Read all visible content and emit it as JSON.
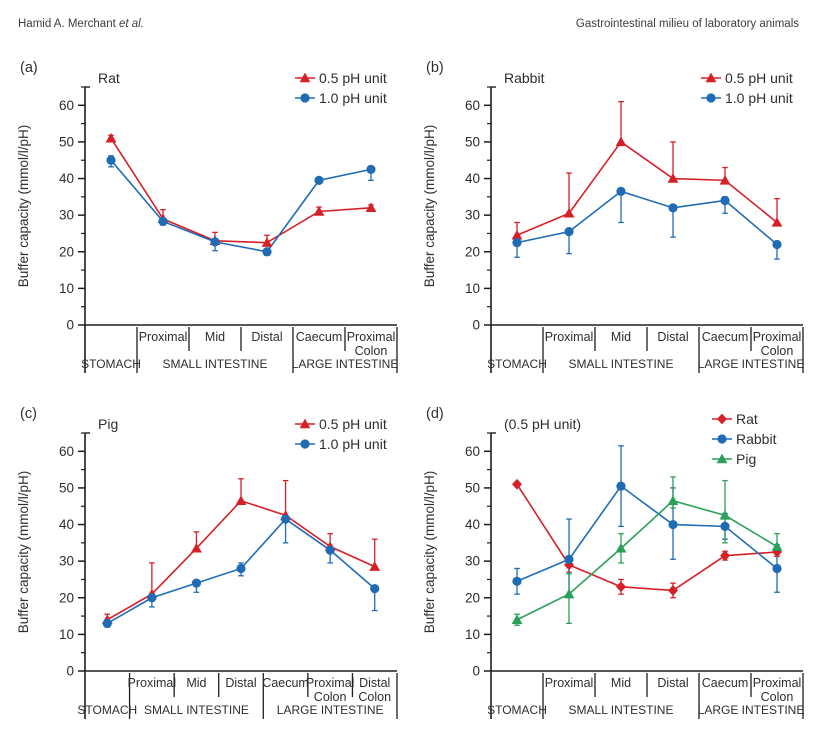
{
  "header": {
    "author_main": "Hamid A. Merchant",
    "author_etal": "et al.",
    "right_title": "Gastrointestinal milieu of laboratory animals"
  },
  "colors": {
    "red": "#d62027",
    "blue": "#1f6cb5",
    "green": "#2aa158",
    "axis": "#1d1d1b",
    "text": "#2e2e2e"
  },
  "ylabel": "Buffer capacity (mmol/l/pH)",
  "chart_data": [
    {
      "type": "line",
      "panel_label": "(a)",
      "title": "Rat",
      "ylabel": "Buffer capacity (mmol/l/pH)",
      "ylim": [
        0,
        65
      ],
      "yticks": [
        0,
        10,
        20,
        30,
        40,
        50,
        60
      ],
      "minor_tick_step": 5,
      "grid": false,
      "legend_position": "top-right",
      "categories": [
        "Stomach",
        "Proximal SI",
        "Mid SI",
        "Distal SI",
        "Caecum",
        "Proximal Colon"
      ],
      "sublabels": [
        [
          ""
        ],
        [
          "Proximal"
        ],
        [
          "Mid"
        ],
        [
          "Distal"
        ],
        [
          "Caecum"
        ],
        [
          "Proximal",
          "Colon"
        ]
      ],
      "groups": [
        {
          "label": "STOMACH",
          "from": 0,
          "to": 0
        },
        {
          "label": "SMALL INTESTINE",
          "from": 1,
          "to": 3
        },
        {
          "label": "LARGE INTESTINE",
          "from": 4,
          "to": 5
        }
      ],
      "legend": [
        {
          "name": "0.5 pH unit",
          "color": "red",
          "marker": "triangle"
        },
        {
          "name": "1.0 pH unit",
          "color": "blue",
          "marker": "circle"
        }
      ],
      "series": [
        {
          "name": "0.5 pH unit",
          "color": "red",
          "marker": "triangle",
          "values": [
            51,
            29,
            23,
            22.5,
            31,
            32
          ],
          "err_up": [
            0.8,
            2.5,
            2.3,
            2,
            1.2,
            0.8
          ],
          "err_down": [
            0.8,
            0,
            0,
            0,
            0,
            0
          ]
        },
        {
          "name": "1.0 pH unit",
          "color": "blue",
          "marker": "circle",
          "values": [
            45,
            28.3,
            22.7,
            20,
            39.5,
            42.5
          ],
          "err_up": [
            1.2,
            0.8,
            0,
            0,
            0,
            0
          ],
          "err_down": [
            1.8,
            1,
            2.4,
            1,
            0,
            3
          ]
        }
      ]
    },
    {
      "type": "line",
      "panel_label": "(b)",
      "title": "Rabbit",
      "ylabel": "Buffer capacity (mmol/l/pH)",
      "ylim": [
        0,
        65
      ],
      "yticks": [
        0,
        10,
        20,
        30,
        40,
        50,
        60
      ],
      "minor_tick_step": 5,
      "grid": false,
      "legend_position": "top-right",
      "categories": [
        "Stomach",
        "Proximal SI",
        "Mid SI",
        "Distal SI",
        "Caecum",
        "Proximal Colon"
      ],
      "sublabels": [
        [
          ""
        ],
        [
          "Proximal"
        ],
        [
          "Mid"
        ],
        [
          "Distal"
        ],
        [
          "Caecum"
        ],
        [
          "Proximal",
          "Colon"
        ]
      ],
      "groups": [
        {
          "label": "STOMACH",
          "from": 0,
          "to": 0
        },
        {
          "label": "SMALL INTESTINE",
          "from": 1,
          "to": 3
        },
        {
          "label": "LARGE INTESTINE",
          "from": 4,
          "to": 5
        }
      ],
      "legend": [
        {
          "name": "0.5 pH unit",
          "color": "red",
          "marker": "triangle"
        },
        {
          "name": "1.0 pH unit",
          "color": "blue",
          "marker": "circle"
        }
      ],
      "series": [
        {
          "name": "0.5 pH unit",
          "color": "red",
          "marker": "triangle",
          "values": [
            24.5,
            30.5,
            50,
            40,
            39.5,
            28
          ],
          "err_up": [
            3.5,
            11,
            11,
            10,
            3.5,
            6.5
          ],
          "err_down": [
            1,
            0,
            0,
            0,
            0,
            0
          ]
        },
        {
          "name": "1.0 pH unit",
          "color": "blue",
          "marker": "circle",
          "values": [
            22.5,
            25.5,
            36.5,
            32,
            34,
            22
          ],
          "err_up": [
            0,
            0,
            0,
            0,
            1,
            0
          ],
          "err_down": [
            4,
            6,
            8.5,
            8,
            3.5,
            4
          ]
        }
      ]
    },
    {
      "type": "line",
      "panel_label": "(c)",
      "title": "Pig",
      "ylabel": "Buffer capacity (mmol/l/pH)",
      "ylim": [
        0,
        65
      ],
      "yticks": [
        0,
        10,
        20,
        30,
        40,
        50,
        60
      ],
      "minor_tick_step": 5,
      "grid": false,
      "legend_position": "top-right",
      "categories": [
        "Stomach",
        "Proximal SI",
        "Mid SI",
        "Distal SI",
        "Caecum",
        "Proximal Colon",
        "Distal Colon"
      ],
      "sublabels": [
        [
          ""
        ],
        [
          "Proximal"
        ],
        [
          "Mid"
        ],
        [
          "Distal"
        ],
        [
          "Caecum"
        ],
        [
          "Proximal",
          "Colon"
        ],
        [
          "Distal",
          "Colon"
        ]
      ],
      "groups": [
        {
          "label": "STOMACH",
          "from": 0,
          "to": 0
        },
        {
          "label": "SMALL INTESTINE",
          "from": 1,
          "to": 3
        },
        {
          "label": "LARGE INTESTINE",
          "from": 4,
          "to": 6
        }
      ],
      "legend": [
        {
          "name": "0.5 pH unit",
          "color": "red",
          "marker": "triangle"
        },
        {
          "name": "1.0 pH unit",
          "color": "blue",
          "marker": "circle"
        }
      ],
      "series": [
        {
          "name": "0.5 pH unit",
          "color": "red",
          "marker": "triangle",
          "values": [
            14,
            21,
            33.5,
            46.5,
            42.5,
            34,
            28.5
          ],
          "err_up": [
            1.5,
            8.5,
            4.5,
            6,
            9.5,
            3.5,
            7.5
          ],
          "err_down": [
            1,
            0,
            0,
            0,
            0,
            0,
            0
          ]
        },
        {
          "name": "1.0 pH unit",
          "color": "blue",
          "marker": "circle",
          "values": [
            13,
            20,
            24,
            28,
            41.5,
            33,
            22.5
          ],
          "err_up": [
            0.8,
            0,
            0,
            1.5,
            0,
            0,
            0
          ],
          "err_down": [
            1,
            2.5,
            2.5,
            2,
            6.5,
            3.5,
            6
          ]
        }
      ]
    },
    {
      "type": "line",
      "panel_label": "(d)",
      "title": "(0.5 pH unit)",
      "ylabel": "Buffer capacity (mmol/l/pH)",
      "ylim": [
        0,
        65
      ],
      "yticks": [
        0,
        10,
        20,
        30,
        40,
        50,
        60
      ],
      "minor_tick_step": 5,
      "grid": false,
      "legend_position": "top-right",
      "categories": [
        "Stomach",
        "Proximal SI",
        "Mid SI",
        "Distal SI",
        "Caecum",
        "Proximal Colon"
      ],
      "sublabels": [
        [
          ""
        ],
        [
          "Proximal"
        ],
        [
          "Mid"
        ],
        [
          "Distal"
        ],
        [
          "Caecum"
        ],
        [
          "Proximal",
          "Colon"
        ]
      ],
      "groups": [
        {
          "label": "STOMACH",
          "from": 0,
          "to": 0
        },
        {
          "label": "SMALL INTESTINE",
          "from": 1,
          "to": 3
        },
        {
          "label": "LARGE INTESTINE",
          "from": 4,
          "to": 5
        }
      ],
      "legend": [
        {
          "name": "Rat",
          "color": "red",
          "marker": "diamond"
        },
        {
          "name": "Rabbit",
          "color": "blue",
          "marker": "circle"
        },
        {
          "name": "Pig",
          "color": "green",
          "marker": "triangle"
        }
      ],
      "series": [
        {
          "name": "Rat",
          "color": "red",
          "marker": "diamond",
          "values": [
            51,
            29,
            23,
            22,
            31.5,
            32.5
          ],
          "err_up": [
            0,
            2,
            2,
            2,
            1.2,
            1.2
          ],
          "err_down": [
            0,
            2,
            2,
            2,
            1.2,
            1.2
          ]
        },
        {
          "name": "Rabbit",
          "color": "blue",
          "marker": "circle",
          "values": [
            24.5,
            30.5,
            50.5,
            40,
            39.5,
            28
          ],
          "err_up": [
            3.5,
            11,
            11,
            10,
            3.5,
            6.5
          ],
          "err_down": [
            3.5,
            10.5,
            11,
            9.5,
            3.5,
            6.5
          ]
        },
        {
          "name": "Pig",
          "color": "green",
          "marker": "triangle",
          "values": [
            14,
            21,
            33.5,
            46.5,
            42.5,
            34
          ],
          "err_up": [
            1.5,
            5.5,
            4,
            6.5,
            9.5,
            3.5
          ],
          "err_down": [
            1.5,
            8,
            4,
            2,
            7.5,
            0
          ]
        }
      ]
    }
  ]
}
